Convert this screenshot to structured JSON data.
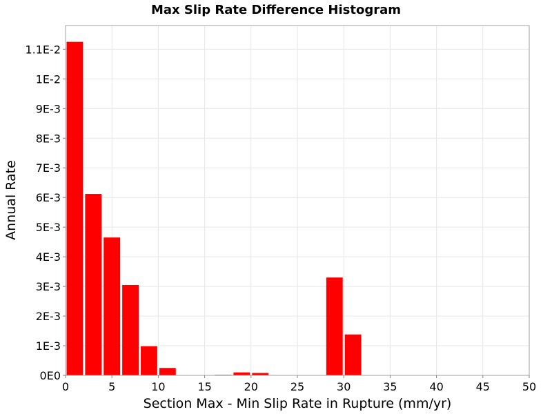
{
  "chart_data": {
    "type": "bar",
    "title": "Max Slip Rate Difference Histogram",
    "xlabel": "Section Max - Min Slip Rate in Rupture (mm/yr)",
    "ylabel": "Annual Rate",
    "xlim": [
      0,
      50
    ],
    "ylim": [
      0,
      0.0118
    ],
    "x_ticks": [
      0,
      5,
      10,
      15,
      20,
      25,
      30,
      35,
      40,
      45,
      50
    ],
    "x_tick_labels": [
      "0",
      "5",
      "10",
      "15",
      "20",
      "25",
      "30",
      "35",
      "40",
      "45",
      "50"
    ],
    "y_ticks": [
      0,
      0.001,
      0.002,
      0.003,
      0.004,
      0.005,
      0.006,
      0.007,
      0.008,
      0.009,
      0.01,
      0.011
    ],
    "y_tick_labels": [
      "0E0",
      "1E-3",
      "2E-3",
      "3E-3",
      "4E-3",
      "5E-3",
      "6E-3",
      "7E-3",
      "8E-3",
      "9E-3",
      "1E-2",
      "1.1E-2"
    ],
    "bin_width": 2,
    "bins": [
      1,
      3,
      5,
      7,
      9,
      11,
      13,
      15,
      17,
      19,
      21,
      23,
      25,
      27,
      29,
      31,
      33,
      35,
      37,
      39,
      41,
      43,
      45,
      47,
      49
    ],
    "values": [
      0.01125,
      0.00612,
      0.00465,
      0.00305,
      0.00098,
      0.00025,
      0,
      0,
      2e-05,
      0.0001,
      8e-05,
      0,
      0,
      0,
      0.0033,
      0.00138,
      0,
      0,
      0,
      0,
      0,
      0,
      0,
      0,
      0
    ],
    "grid": true,
    "legend": false,
    "colors": {
      "bar": "#ff0000",
      "grid": "#e6e6e6",
      "frame": "#a0a0a0",
      "background": "#ffffff"
    }
  }
}
